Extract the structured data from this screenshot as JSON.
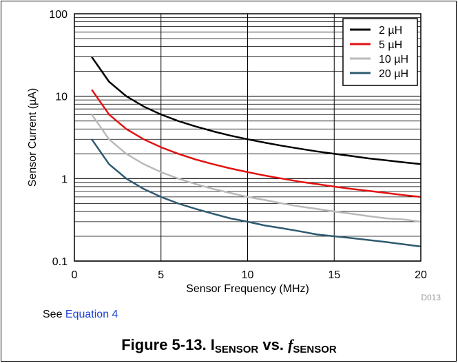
{
  "chart_data": {
    "type": "line",
    "xlabel": "Sensor Frequency (MHz)",
    "ylabel": "Sensor Current (µA)",
    "xlim": [
      0,
      20
    ],
    "ylim": [
      0.1,
      100
    ],
    "y_scale": "log",
    "x_ticks": [
      "0",
      "5",
      "10",
      "15",
      "20"
    ],
    "y_ticks": [
      "0.1",
      "1",
      "10",
      "100"
    ],
    "grid": true,
    "legend_position": "top-right",
    "figure_id": "D013",
    "x": [
      1,
      2,
      3,
      4,
      5,
      6,
      7,
      8,
      9,
      10,
      11,
      12,
      13,
      14,
      15,
      16,
      17,
      18,
      19,
      20
    ],
    "series": [
      {
        "name": "2 µH",
        "color": "#000000",
        "values": [
          30,
          15,
          10,
          7.5,
          6,
          5,
          4.29,
          3.75,
          3.33,
          3,
          2.73,
          2.5,
          2.31,
          2.14,
          2,
          1.88,
          1.76,
          1.67,
          1.58,
          1.5
        ]
      },
      {
        "name": "5 µH",
        "color": "#e31212",
        "values": [
          12,
          6,
          4,
          3,
          2.4,
          2,
          1.71,
          1.5,
          1.33,
          1.2,
          1.09,
          1,
          0.92,
          0.86,
          0.8,
          0.75,
          0.71,
          0.67,
          0.63,
          0.6
        ]
      },
      {
        "name": "10 µH",
        "color": "#b9b9b9",
        "values": [
          6,
          3,
          2,
          1.5,
          1.2,
          1,
          0.86,
          0.75,
          0.67,
          0.6,
          0.55,
          0.5,
          0.46,
          0.43,
          0.4,
          0.375,
          0.35,
          0.33,
          0.32,
          0.3
        ]
      },
      {
        "name": "20 µH",
        "color": "#2e5a70",
        "values": [
          3,
          1.5,
          1,
          0.75,
          0.6,
          0.5,
          0.43,
          0.375,
          0.33,
          0.3,
          0.27,
          0.25,
          0.23,
          0.21,
          0.2,
          0.19,
          0.18,
          0.17,
          0.16,
          0.15
        ]
      }
    ]
  },
  "note": {
    "prefix": "See ",
    "link": "Equation 4"
  },
  "caption": {
    "prefix": "Figure 5-13. I",
    "sub1": "SENSOR",
    "middle": " vs. ",
    "f": "f",
    "sub2": "SENSOR"
  }
}
